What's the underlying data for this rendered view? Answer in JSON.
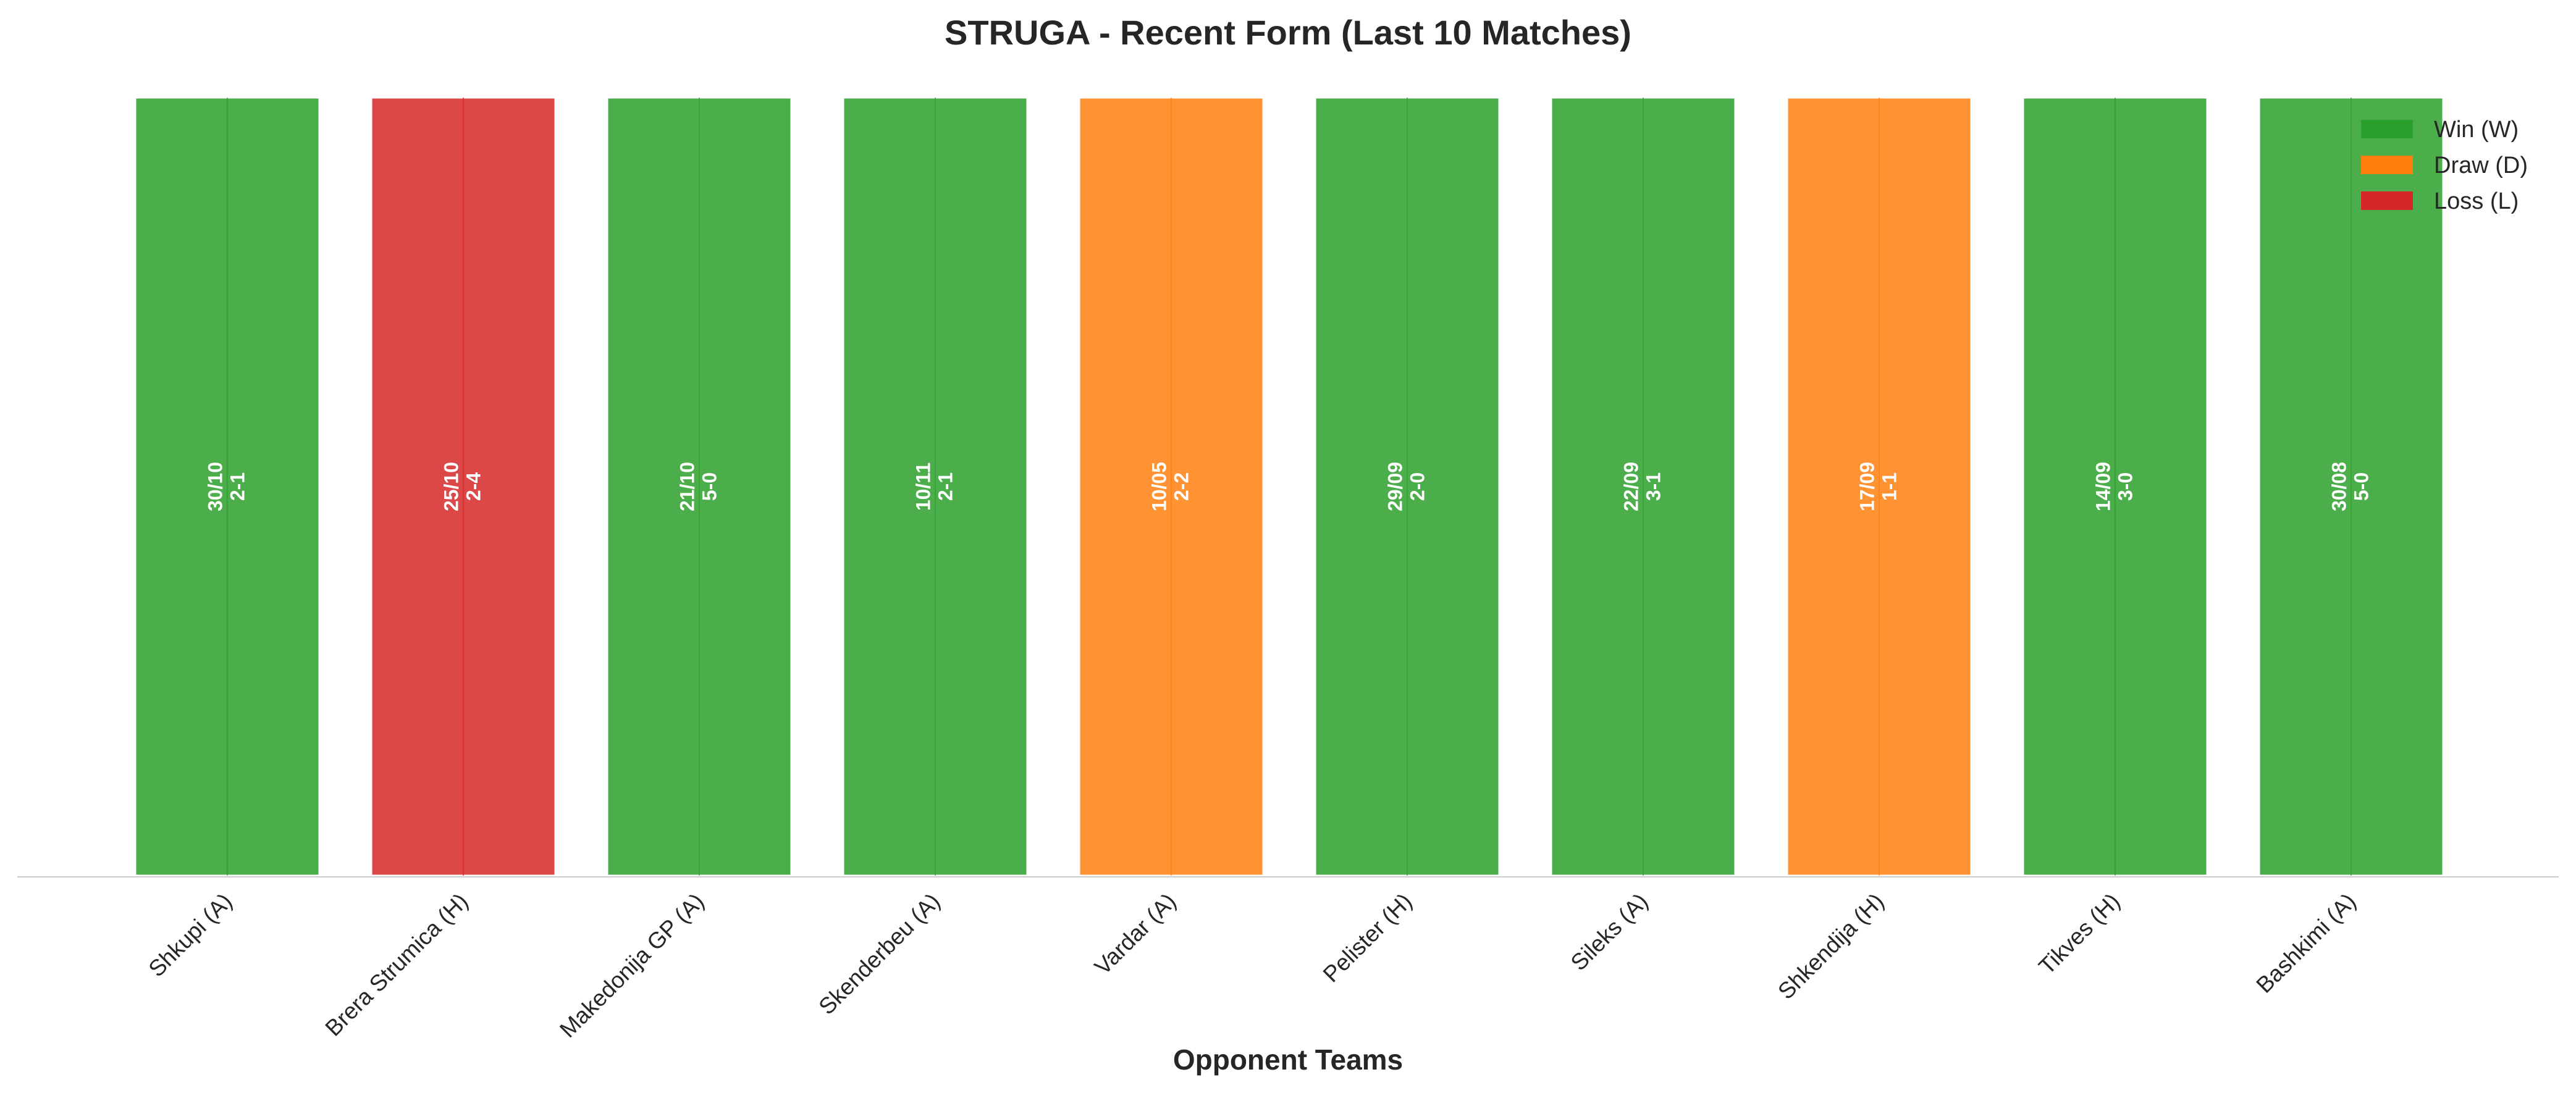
{
  "chart_data": {
    "type": "bar",
    "title": "STRUGA - Recent Form (Last 10 Matches)",
    "xlabel": "Opponent Teams",
    "ylabel": "",
    "ylim": [
      0,
      1
    ],
    "grid": false,
    "legend_position": "top-right",
    "categories": [
      "Shkupi (A)",
      "Brera Strumica (H)",
      "Makedonija GP (A)",
      "Skenderbeu (A)",
      "Vardar (A)",
      "Pelister (H)",
      "Sileks (A)",
      "Shkendija (H)",
      "Tikves (H)",
      "Bashkimi (A)"
    ],
    "values": [
      1,
      1,
      1,
      1,
      1,
      1,
      1,
      1,
      1,
      1
    ],
    "dates": [
      "30/10",
      "25/10",
      "21/10",
      "10/11",
      "10/05",
      "29/09",
      "22/09",
      "17/09",
      "14/09",
      "30/08"
    ],
    "scores": [
      "2-1",
      "2-4",
      "5-0",
      "2-1",
      "2-2",
      "2-0",
      "3-1",
      "1-1",
      "3-0",
      "5-0"
    ],
    "results": [
      "W",
      "L",
      "W",
      "W",
      "D",
      "W",
      "W",
      "D",
      "W",
      "W"
    ],
    "legend": [
      {
        "key": "W",
        "label": "Win (W)",
        "color": "#2ca02c"
      },
      {
        "key": "D",
        "label": "Draw (D)",
        "color": "#ff7f0e"
      },
      {
        "key": "L",
        "label": "Loss (L)",
        "color": "#d62728"
      }
    ]
  }
}
